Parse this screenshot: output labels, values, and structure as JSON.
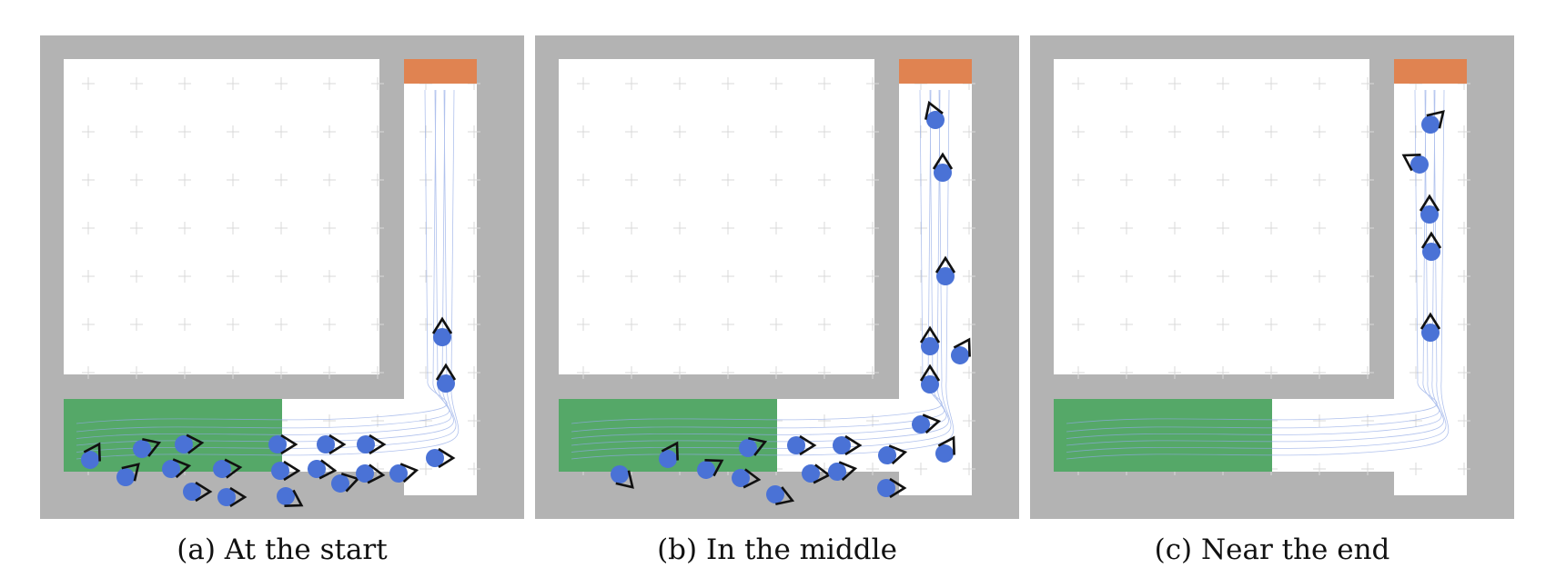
{
  "colors": {
    "wall": "#b3b3b3",
    "floor": "#ffffff",
    "start_region": "#55a868",
    "goal_region": "#e08351",
    "agent": "#4a72d6",
    "heading": "#111111",
    "trajectory": "#8fa8e6",
    "grid": "#d9d9d9"
  },
  "agent_icon": "agent-with-heading-chevron",
  "panels": [
    {
      "caption": "(a) At the start",
      "show_start_region": true,
      "trajectories": true
    },
    {
      "caption": "(b) In the middle",
      "show_start_region": true,
      "trajectories": true
    },
    {
      "caption": "(c) Near the end",
      "show_start_region": true,
      "trajectories": true
    }
  ]
}
